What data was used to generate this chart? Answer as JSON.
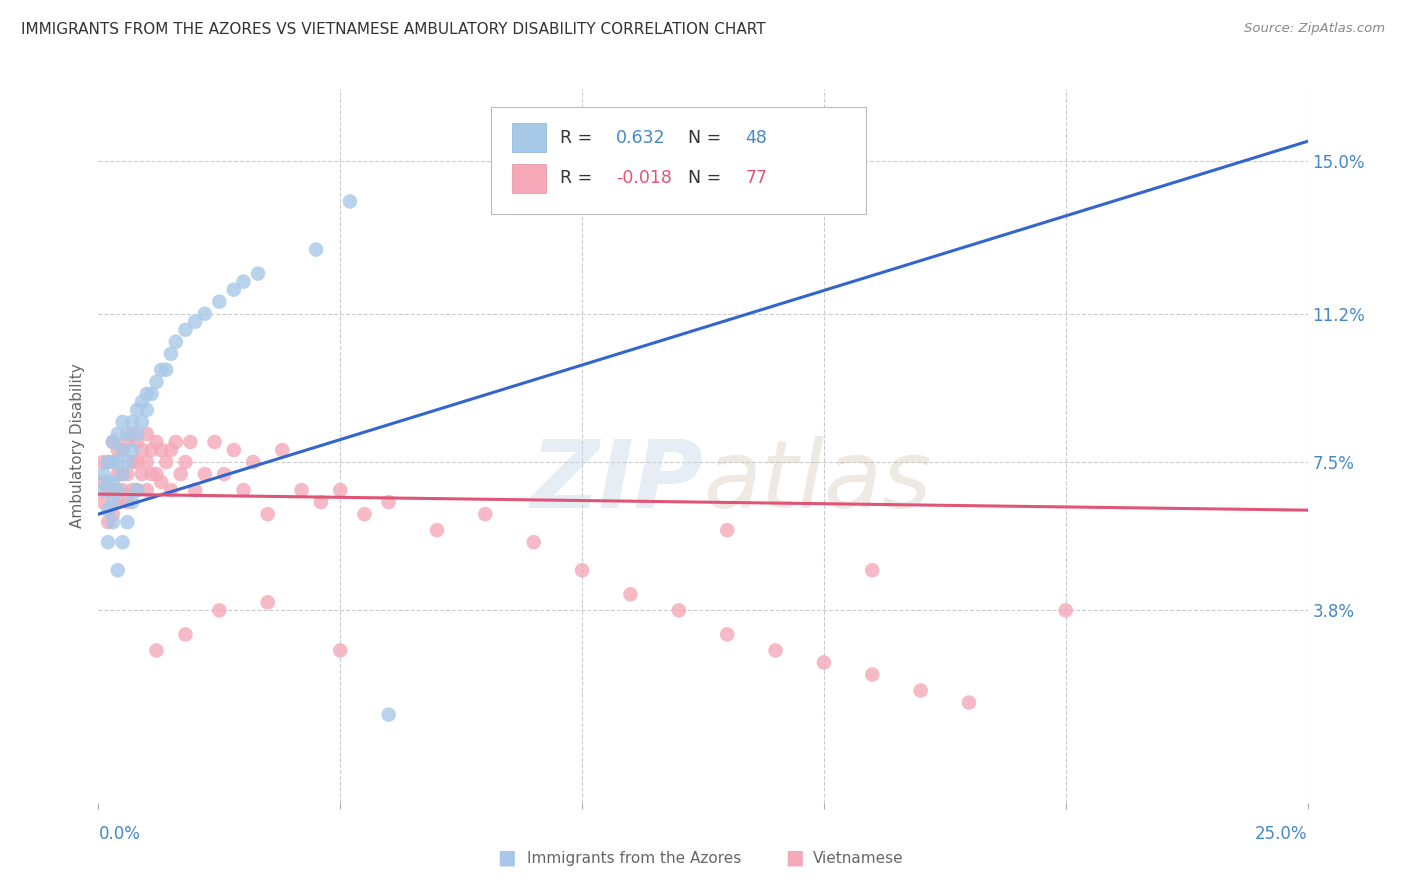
{
  "title": "IMMIGRANTS FROM THE AZORES VS VIETNAMESE AMBULATORY DISABILITY CORRELATION CHART",
  "source": "Source: ZipAtlas.com",
  "ylabel": "Ambulatory Disability",
  "yticks": [
    "15.0%",
    "11.2%",
    "7.5%",
    "3.8%"
  ],
  "ytick_vals": [
    0.15,
    0.112,
    0.075,
    0.038
  ],
  "xlim": [
    0.0,
    0.25
  ],
  "ylim": [
    -0.01,
    0.168
  ],
  "legend_r_azores": "0.632",
  "legend_n_azores": "48",
  "legend_r_vietnamese": "-0.018",
  "legend_n_vietnamese": "77",
  "color_azores": "#a8c8e8",
  "color_vietnamese": "#f4a8b8",
  "color_azores_line": "#3366cc",
  "color_vietnamese_line": "#e05575",
  "color_axis_labels": "#4488cc",
  "color_grid": "#cccccc",
  "watermark_color": "#c8d8e8",
  "azores_x": [
    0.001,
    0.001,
    0.002,
    0.002,
    0.002,
    0.003,
    0.003,
    0.003,
    0.003,
    0.004,
    0.004,
    0.004,
    0.005,
    0.005,
    0.005,
    0.006,
    0.006,
    0.007,
    0.007,
    0.008,
    0.008,
    0.009,
    0.009,
    0.01,
    0.01,
    0.011,
    0.012,
    0.013,
    0.014,
    0.015,
    0.016,
    0.018,
    0.02,
    0.022,
    0.025,
    0.028,
    0.03,
    0.033,
    0.002,
    0.003,
    0.004,
    0.005,
    0.006,
    0.007,
    0.008,
    0.045,
    0.052,
    0.06
  ],
  "azores_y": [
    0.068,
    0.072,
    0.063,
    0.07,
    0.075,
    0.065,
    0.07,
    0.075,
    0.08,
    0.068,
    0.075,
    0.082,
    0.072,
    0.078,
    0.085,
    0.075,
    0.082,
    0.078,
    0.085,
    0.082,
    0.088,
    0.085,
    0.09,
    0.088,
    0.092,
    0.092,
    0.095,
    0.098,
    0.098,
    0.102,
    0.105,
    0.108,
    0.11,
    0.112,
    0.115,
    0.118,
    0.12,
    0.122,
    0.055,
    0.06,
    0.048,
    0.055,
    0.06,
    0.065,
    0.068,
    0.128,
    0.14,
    0.012
  ],
  "vietnamese_x": [
    0.001,
    0.001,
    0.001,
    0.002,
    0.002,
    0.002,
    0.003,
    0.003,
    0.003,
    0.003,
    0.004,
    0.004,
    0.004,
    0.005,
    0.005,
    0.005,
    0.006,
    0.006,
    0.006,
    0.007,
    0.007,
    0.007,
    0.008,
    0.008,
    0.008,
    0.009,
    0.009,
    0.01,
    0.01,
    0.01,
    0.011,
    0.011,
    0.012,
    0.012,
    0.013,
    0.013,
    0.014,
    0.015,
    0.015,
    0.016,
    0.017,
    0.018,
    0.019,
    0.02,
    0.022,
    0.024,
    0.026,
    0.028,
    0.03,
    0.032,
    0.035,
    0.038,
    0.042,
    0.046,
    0.05,
    0.055,
    0.06,
    0.07,
    0.08,
    0.09,
    0.1,
    0.11,
    0.12,
    0.13,
    0.14,
    0.15,
    0.16,
    0.17,
    0.18,
    0.2,
    0.13,
    0.16,
    0.05,
    0.035,
    0.025,
    0.018,
    0.012
  ],
  "vietnamese_y": [
    0.065,
    0.07,
    0.075,
    0.06,
    0.068,
    0.075,
    0.062,
    0.068,
    0.075,
    0.08,
    0.065,
    0.072,
    0.078,
    0.068,
    0.072,
    0.078,
    0.065,
    0.072,
    0.08,
    0.068,
    0.075,
    0.082,
    0.068,
    0.075,
    0.08,
    0.072,
    0.078,
    0.068,
    0.075,
    0.082,
    0.072,
    0.078,
    0.072,
    0.08,
    0.07,
    0.078,
    0.075,
    0.068,
    0.078,
    0.08,
    0.072,
    0.075,
    0.08,
    0.068,
    0.072,
    0.08,
    0.072,
    0.078,
    0.068,
    0.075,
    0.062,
    0.078,
    0.068,
    0.065,
    0.068,
    0.062,
    0.065,
    0.058,
    0.062,
    0.055,
    0.048,
    0.042,
    0.038,
    0.032,
    0.028,
    0.025,
    0.022,
    0.018,
    0.015,
    0.038,
    0.058,
    0.048,
    0.028,
    0.04,
    0.038,
    0.032,
    0.028
  ],
  "az_line_x0": 0.0,
  "az_line_y0": 0.062,
  "az_line_x1": 0.25,
  "az_line_y1": 0.155,
  "viet_line_x0": 0.0,
  "viet_line_y0": 0.067,
  "viet_line_x1": 0.25,
  "viet_line_y1": 0.063
}
